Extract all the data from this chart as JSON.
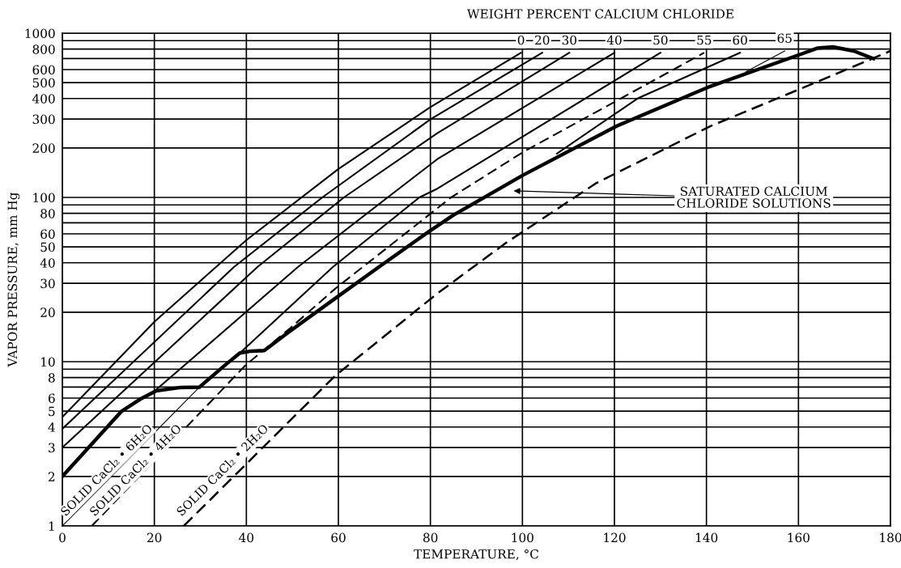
{
  "chart_data": {
    "type": "line",
    "legend_title": "WEIGHT PERCENT CALCIUM CHLORIDE",
    "xlabel": "TEMPERATURE, °C",
    "ylabel": "VAPOR PRESSURE, mm Hg",
    "xlim": [
      0,
      180
    ],
    "xticks": [
      0,
      20,
      40,
      60,
      80,
      100,
      120,
      140,
      160,
      180
    ],
    "ylim": [
      1,
      1000
    ],
    "log": true,
    "yticks": [
      1,
      2,
      3,
      4,
      5,
      6,
      {
        "value": 7,
        "label": null
      },
      8,
      {
        "value": 9,
        "label": null
      },
      10,
      20,
      30,
      40,
      50,
      60,
      {
        "value": 70,
        "label": null
      },
      80,
      {
        "value": 90,
        "label": null
      },
      100,
      200,
      300,
      400,
      500,
      600,
      {
        "value": 700,
        "label": null
      },
      800,
      {
        "value": 900,
        "label": null
      },
      1000
    ],
    "grid": true,
    "marker": "none",
    "series": [
      {
        "name": "0",
        "color": "#000000",
        "line_style": "solid",
        "x": [
          0,
          20,
          40,
          60,
          80,
          99.7
        ],
        "values": [
          4.6,
          17.5,
          55,
          149,
          355,
          760
        ]
      },
      {
        "name": "20",
        "color": "#000000",
        "line_style": "solid",
        "x": [
          0,
          37.3,
          56.5,
          80.1,
          104.3
        ],
        "values": [
          3.9,
          37.7,
          100,
          300,
          760
        ]
      },
      {
        "name": "30",
        "color": "#000000",
        "line_style": "solid",
        "x": [
          0,
          42.4,
          61.2,
          81.5,
          110.2
        ],
        "values": [
          3,
          37.7,
          100,
          246,
          760
        ]
      },
      {
        "name": "40",
        "color": "#000000",
        "line_style": "solid",
        "x": [
          20,
          51.2,
          70.7,
          81.5,
          120
        ],
        "values": [
          6.6,
          37.7,
          100,
          171,
          760
        ]
      },
      {
        "name": "50",
        "color": "#000000",
        "line_style": "solid",
        "x": [
          38.6,
          58.8,
          77.6,
          81.5,
          130
        ],
        "values": [
          11.3,
          37.7,
          100,
          113,
          760
        ]
      },
      {
        "name": "55",
        "color": "#000000",
        "line_style": "dashed",
        "x": [
          6.4,
          39.8,
          49.3,
          59.3,
          84.5,
          100.3,
          139.5
        ],
        "values": [
          1,
          9.5,
          15.8,
          27.8,
          100,
          190,
          760
        ]
      },
      {
        "name": "60",
        "color": "#000000",
        "line_style": "solid",
        "x": [
          107.5,
          125,
          147.3
        ],
        "values": [
          185,
          400,
          760
        ]
      },
      {
        "name": "65",
        "color": "#000000",
        "line_style": "solid",
        "x": [
          148.5,
          157
        ],
        "values": [
          580,
          780
        ]
      },
      {
        "color": "#000000",
        "line_style": "solid",
        "x": [
          0,
          12.8,
          17.2,
          20.4,
          25.4,
          29.8,
          35.5,
          38.6,
          41.1,
          43.9,
          49.3,
          59.6,
          68.8,
          79.5,
          85,
          100,
          120.5,
          140.8,
          161,
          164.2,
          167.5,
          172,
          176.3
        ],
        "values": [
          2,
          4.97,
          5.97,
          6.64,
          6.95,
          7.0,
          9.6,
          11.3,
          11.6,
          11.7,
          15.2,
          24.6,
          37.7,
          61.5,
          78,
          136,
          272,
          474,
          753,
          812,
          825,
          779,
          700
        ]
      },
      {
        "color": "#000000",
        "line_style": "solid",
        "x": [
          0,
          29.8
        ],
        "values": [
          1,
          7.0
        ]
      },
      {
        "color": "#000000",
        "line_style": "dashed",
        "x": [
          26.4,
          59.3,
          81.5,
          96.4,
          116,
          140.8,
          163,
          180
        ],
        "values": [
          1,
          8.2,
          26,
          52.8,
          122,
          271,
          491,
          779
        ]
      }
    ],
    "annotations": [
      "SATURATED CALCIUM\nCHLORIDE SOLUTIONS",
      "SOLID CaCl₂ • 6H₂O",
      "SOLID CaCl₂ • 4H₂O",
      "SOLID CaCl₂ • 2H₂O"
    ]
  }
}
